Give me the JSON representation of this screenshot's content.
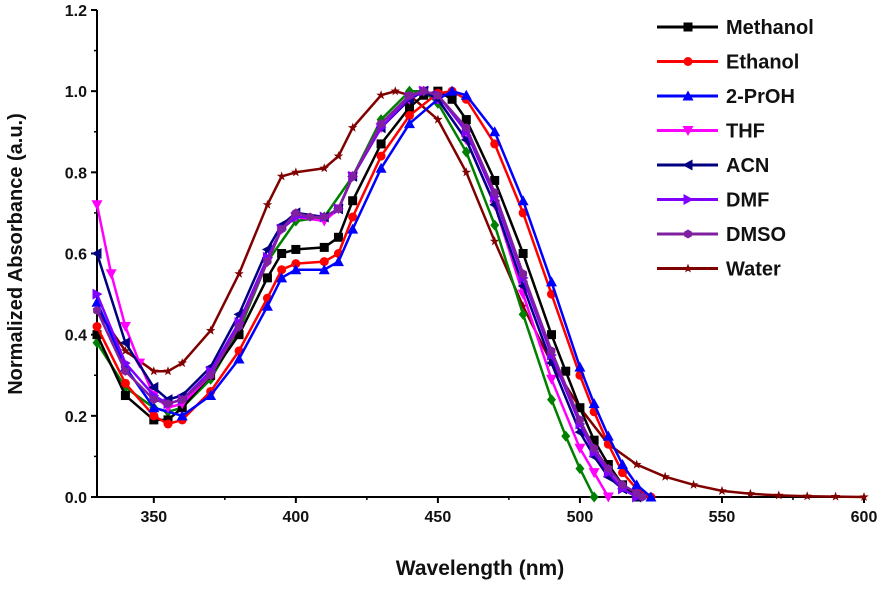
{
  "chart_data": {
    "type": "line",
    "title": "",
    "xlabel": "Wavelength (nm)",
    "ylabel": "Normalized Absorbance (a.u.)",
    "xlim": [
      330,
      600
    ],
    "ylim": [
      0.0,
      1.2
    ],
    "xticks": [
      350,
      400,
      450,
      500,
      550,
      600
    ],
    "yticks": [
      "0.0",
      "0.2",
      "0.4",
      "0.6",
      "0.8",
      "1.0",
      "1.2"
    ],
    "grid": false,
    "legend_position": "top-right",
    "series": [
      {
        "name": "Methanol",
        "color": "#000000",
        "marker": "square",
        "x": [
          330,
          340,
          350,
          355,
          360,
          370,
          380,
          390,
          395,
          400,
          410,
          415,
          420,
          430,
          440,
          445,
          450,
          455,
          460,
          470,
          480,
          490,
          495,
          500,
          505,
          510,
          515,
          520
        ],
        "y": [
          0.4,
          0.25,
          0.19,
          0.19,
          0.22,
          0.3,
          0.4,
          0.54,
          0.6,
          0.61,
          0.615,
          0.64,
          0.73,
          0.87,
          0.96,
          0.99,
          1.0,
          0.98,
          0.93,
          0.78,
          0.6,
          0.4,
          0.31,
          0.22,
          0.14,
          0.08,
          0.03,
          0.0
        ]
      },
      {
        "name": "Ethanol",
        "color": "#ff0000",
        "marker": "circle",
        "x": [
          330,
          340,
          350,
          355,
          360,
          370,
          380,
          390,
          395,
          400,
          410,
          415,
          420,
          430,
          440,
          450,
          455,
          460,
          470,
          480,
          490,
          500,
          505,
          510,
          515,
          520,
          525
        ],
        "y": [
          0.42,
          0.28,
          0.2,
          0.18,
          0.19,
          0.26,
          0.36,
          0.49,
          0.56,
          0.575,
          0.58,
          0.6,
          0.69,
          0.84,
          0.94,
          0.995,
          1.0,
          0.98,
          0.87,
          0.7,
          0.5,
          0.3,
          0.21,
          0.13,
          0.06,
          0.02,
          0.0
        ]
      },
      {
        "name": "2-PrOH",
        "color": "#0000ff",
        "marker": "triangle-up",
        "x": [
          330,
          340,
          350,
          360,
          370,
          380,
          390,
          395,
          400,
          410,
          415,
          420,
          430,
          440,
          450,
          455,
          460,
          470,
          480,
          490,
          500,
          505,
          510,
          515,
          520,
          525
        ],
        "y": [
          0.48,
          0.32,
          0.22,
          0.2,
          0.25,
          0.34,
          0.47,
          0.54,
          0.56,
          0.56,
          0.58,
          0.66,
          0.81,
          0.92,
          0.98,
          1.0,
          0.99,
          0.9,
          0.73,
          0.53,
          0.32,
          0.23,
          0.15,
          0.08,
          0.03,
          0.0
        ]
      },
      {
        "name": " THF",
        "color": "#ff00ff",
        "marker": "triangle-down",
        "x": [
          330,
          335,
          340,
          345,
          350,
          355,
          360,
          370,
          380,
          390,
          395,
          400,
          410,
          415,
          420,
          430,
          440,
          445,
          450,
          460,
          470,
          480,
          490,
          500,
          505,
          510
        ],
        "y": [
          0.72,
          0.55,
          0.42,
          0.33,
          0.25,
          0.22,
          0.23,
          0.3,
          0.42,
          0.58,
          0.66,
          0.69,
          0.68,
          0.71,
          0.79,
          0.91,
          0.98,
          1.0,
          0.98,
          0.88,
          0.72,
          0.5,
          0.29,
          0.12,
          0.06,
          0.0
        ]
      },
      {
        "name": "ACN",
        "color": "#000080",
        "marker": "triangle-left",
        "x": [
          330,
          340,
          350,
          355,
          360,
          370,
          380,
          390,
          395,
          400,
          410,
          415,
          420,
          430,
          440,
          445,
          450,
          460,
          470,
          480,
          490,
          500,
          505,
          510,
          515,
          520
        ],
        "y": [
          0.6,
          0.38,
          0.27,
          0.24,
          0.25,
          0.32,
          0.45,
          0.61,
          0.67,
          0.7,
          0.69,
          0.71,
          0.79,
          0.91,
          0.98,
          1.0,
          0.98,
          0.88,
          0.72,
          0.52,
          0.33,
          0.16,
          0.1,
          0.05,
          0.02,
          0.0
        ]
      },
      {
        "name": "DMF",
        "color": "#8000ff",
        "marker": "triangle-right",
        "x": [
          330,
          340,
          350,
          355,
          360,
          370,
          380,
          390,
          395,
          400,
          410,
          415,
          420,
          430,
          440,
          445,
          450,
          460,
          470,
          480,
          490,
          500,
          505,
          510,
          515,
          520
        ],
        "y": [
          0.5,
          0.33,
          0.25,
          0.23,
          0.24,
          0.31,
          0.43,
          0.59,
          0.66,
          0.69,
          0.69,
          0.71,
          0.79,
          0.91,
          0.985,
          1.0,
          0.99,
          0.9,
          0.74,
          0.54,
          0.35,
          0.18,
          0.11,
          0.06,
          0.02,
          0.0
        ]
      },
      {
        "name": "DMSO",
        "color": "#8020a0",
        "marker": "hexagon",
        "x": [
          330,
          340,
          350,
          355,
          360,
          370,
          380,
          390,
          395,
          400,
          405,
          410,
          415,
          420,
          430,
          440,
          445,
          450,
          460,
          470,
          480,
          490,
          500,
          505,
          510,
          515,
          520,
          522
        ],
        "y": [
          0.46,
          0.31,
          0.24,
          0.23,
          0.24,
          0.3,
          0.42,
          0.58,
          0.66,
          0.7,
          0.69,
          0.69,
          0.71,
          0.79,
          0.92,
          0.99,
          1.0,
          0.99,
          0.91,
          0.75,
          0.55,
          0.36,
          0.19,
          0.12,
          0.07,
          0.03,
          0.01,
          0.0
        ]
      },
      {
        "name": "Water",
        "color": "#800000",
        "marker": "star",
        "x": [
          330,
          340,
          350,
          355,
          360,
          370,
          380,
          390,
          395,
          400,
          410,
          415,
          420,
          430,
          435,
          440,
          450,
          460,
          470,
          480,
          490,
          500,
          510,
          520,
          530,
          540,
          550,
          560,
          570,
          580,
          590,
          600
        ],
        "y": [
          0.46,
          0.36,
          0.31,
          0.31,
          0.33,
          0.41,
          0.55,
          0.72,
          0.79,
          0.8,
          0.81,
          0.84,
          0.91,
          0.99,
          1.0,
          0.99,
          0.93,
          0.8,
          0.63,
          0.47,
          0.33,
          0.22,
          0.13,
          0.08,
          0.05,
          0.03,
          0.015,
          0.008,
          0.004,
          0.002,
          0.001,
          0.0
        ]
      },
      {
        "name": "",
        "color": "#008000",
        "marker": "diamond",
        "x": [
          330,
          340,
          350,
          355,
          360,
          370,
          380,
          390,
          400,
          410,
          420,
          430,
          440,
          445,
          450,
          460,
          470,
          480,
          490,
          495,
          500,
          505
        ],
        "y": [
          0.38,
          0.27,
          0.22,
          0.21,
          0.22,
          0.29,
          0.41,
          0.58,
          0.68,
          0.69,
          0.79,
          0.93,
          1.0,
          1.0,
          0.97,
          0.85,
          0.67,
          0.45,
          0.24,
          0.15,
          0.07,
          0.0
        ]
      }
    ]
  }
}
